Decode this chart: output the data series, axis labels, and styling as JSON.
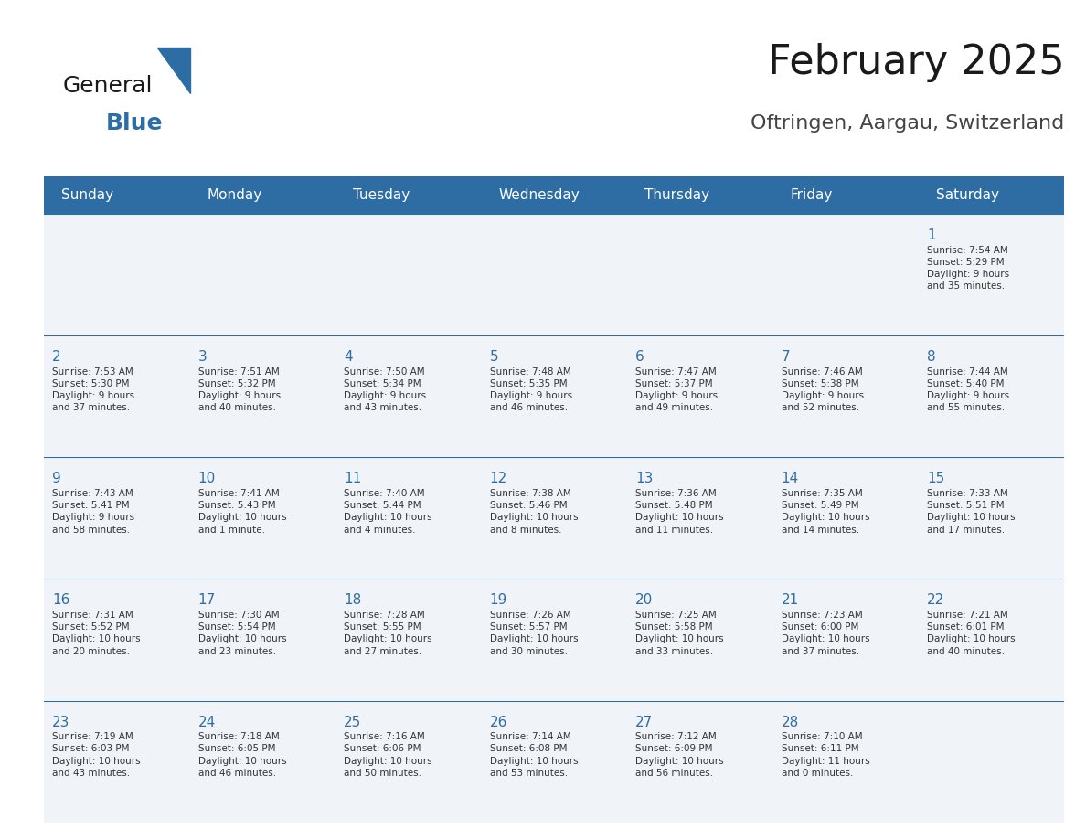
{
  "title": "February 2025",
  "subtitle": "Oftringen, Aargau, Switzerland",
  "header_bg": "#2E6DA4",
  "header_text_color": "#FFFFFF",
  "cell_bg_light": "#F0F4F8",
  "cell_bg_white": "#FFFFFF",
  "border_color": "#2E6DA4",
  "day_number_color": "#2E6DA4",
  "text_color": "#333333",
  "days_of_week": [
    "Sunday",
    "Monday",
    "Tuesday",
    "Wednesday",
    "Thursday",
    "Friday",
    "Saturday"
  ],
  "weeks": [
    [
      {
        "day": "",
        "info": ""
      },
      {
        "day": "",
        "info": ""
      },
      {
        "day": "",
        "info": ""
      },
      {
        "day": "",
        "info": ""
      },
      {
        "day": "",
        "info": ""
      },
      {
        "day": "",
        "info": ""
      },
      {
        "day": "1",
        "info": "Sunrise: 7:54 AM\nSunset: 5:29 PM\nDaylight: 9 hours\nand 35 minutes."
      }
    ],
    [
      {
        "day": "2",
        "info": "Sunrise: 7:53 AM\nSunset: 5:30 PM\nDaylight: 9 hours\nand 37 minutes."
      },
      {
        "day": "3",
        "info": "Sunrise: 7:51 AM\nSunset: 5:32 PM\nDaylight: 9 hours\nand 40 minutes."
      },
      {
        "day": "4",
        "info": "Sunrise: 7:50 AM\nSunset: 5:34 PM\nDaylight: 9 hours\nand 43 minutes."
      },
      {
        "day": "5",
        "info": "Sunrise: 7:48 AM\nSunset: 5:35 PM\nDaylight: 9 hours\nand 46 minutes."
      },
      {
        "day": "6",
        "info": "Sunrise: 7:47 AM\nSunset: 5:37 PM\nDaylight: 9 hours\nand 49 minutes."
      },
      {
        "day": "7",
        "info": "Sunrise: 7:46 AM\nSunset: 5:38 PM\nDaylight: 9 hours\nand 52 minutes."
      },
      {
        "day": "8",
        "info": "Sunrise: 7:44 AM\nSunset: 5:40 PM\nDaylight: 9 hours\nand 55 minutes."
      }
    ],
    [
      {
        "day": "9",
        "info": "Sunrise: 7:43 AM\nSunset: 5:41 PM\nDaylight: 9 hours\nand 58 minutes."
      },
      {
        "day": "10",
        "info": "Sunrise: 7:41 AM\nSunset: 5:43 PM\nDaylight: 10 hours\nand 1 minute."
      },
      {
        "day": "11",
        "info": "Sunrise: 7:40 AM\nSunset: 5:44 PM\nDaylight: 10 hours\nand 4 minutes."
      },
      {
        "day": "12",
        "info": "Sunrise: 7:38 AM\nSunset: 5:46 PM\nDaylight: 10 hours\nand 8 minutes."
      },
      {
        "day": "13",
        "info": "Sunrise: 7:36 AM\nSunset: 5:48 PM\nDaylight: 10 hours\nand 11 minutes."
      },
      {
        "day": "14",
        "info": "Sunrise: 7:35 AM\nSunset: 5:49 PM\nDaylight: 10 hours\nand 14 minutes."
      },
      {
        "day": "15",
        "info": "Sunrise: 7:33 AM\nSunset: 5:51 PM\nDaylight: 10 hours\nand 17 minutes."
      }
    ],
    [
      {
        "day": "16",
        "info": "Sunrise: 7:31 AM\nSunset: 5:52 PM\nDaylight: 10 hours\nand 20 minutes."
      },
      {
        "day": "17",
        "info": "Sunrise: 7:30 AM\nSunset: 5:54 PM\nDaylight: 10 hours\nand 23 minutes."
      },
      {
        "day": "18",
        "info": "Sunrise: 7:28 AM\nSunset: 5:55 PM\nDaylight: 10 hours\nand 27 minutes."
      },
      {
        "day": "19",
        "info": "Sunrise: 7:26 AM\nSunset: 5:57 PM\nDaylight: 10 hours\nand 30 minutes."
      },
      {
        "day": "20",
        "info": "Sunrise: 7:25 AM\nSunset: 5:58 PM\nDaylight: 10 hours\nand 33 minutes."
      },
      {
        "day": "21",
        "info": "Sunrise: 7:23 AM\nSunset: 6:00 PM\nDaylight: 10 hours\nand 37 minutes."
      },
      {
        "day": "22",
        "info": "Sunrise: 7:21 AM\nSunset: 6:01 PM\nDaylight: 10 hours\nand 40 minutes."
      }
    ],
    [
      {
        "day": "23",
        "info": "Sunrise: 7:19 AM\nSunset: 6:03 PM\nDaylight: 10 hours\nand 43 minutes."
      },
      {
        "day": "24",
        "info": "Sunrise: 7:18 AM\nSunset: 6:05 PM\nDaylight: 10 hours\nand 46 minutes."
      },
      {
        "day": "25",
        "info": "Sunrise: 7:16 AM\nSunset: 6:06 PM\nDaylight: 10 hours\nand 50 minutes."
      },
      {
        "day": "26",
        "info": "Sunrise: 7:14 AM\nSunset: 6:08 PM\nDaylight: 10 hours\nand 53 minutes."
      },
      {
        "day": "27",
        "info": "Sunrise: 7:12 AM\nSunset: 6:09 PM\nDaylight: 10 hours\nand 56 minutes."
      },
      {
        "day": "28",
        "info": "Sunrise: 7:10 AM\nSunset: 6:11 PM\nDaylight: 11 hours\nand 0 minutes."
      },
      {
        "day": "",
        "info": ""
      }
    ]
  ],
  "logo_text_general": "General",
  "logo_text_blue": "Blue",
  "logo_color_general": "#1a1a1a",
  "logo_color_blue": "#2E6DA4",
  "logo_triangle_color": "#2E6DA4"
}
